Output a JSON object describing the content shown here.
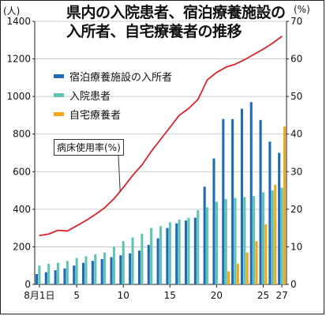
{
  "title": {
    "line1": "県内の入院患者、宿泊療養施設の",
    "line2": "入所者、自宅療養者の推移"
  },
  "units": {
    "left": "(人)",
    "right": "(%)"
  },
  "callout": "病床使用率(%)",
  "colors": {
    "hotel": "#1f6cb4",
    "hospital": "#5fc4b4",
    "home": "#f2a81d",
    "rate": "#d8232a"
  },
  "chart_data": {
    "type": "bar",
    "x_tick_labels": [
      "8月1日",
      "5",
      "10",
      "15",
      "20",
      "25",
      "27"
    ],
    "x_tick_days": [
      1,
      5,
      10,
      15,
      20,
      25,
      27
    ],
    "days": [
      1,
      2,
      3,
      4,
      5,
      6,
      7,
      8,
      9,
      10,
      11,
      12,
      13,
      14,
      15,
      16,
      17,
      18,
      19,
      20,
      21,
      22,
      23,
      24,
      25,
      26,
      27
    ],
    "ylim_left": [
      0,
      1400
    ],
    "yticks_left": [
      0,
      200,
      400,
      600,
      800,
      1000,
      1200,
      1400
    ],
    "ylim_right": [
      0,
      70
    ],
    "yticks_right": [
      0,
      10,
      20,
      30,
      40,
      50,
      60,
      70
    ],
    "series": [
      {
        "name": "宿泊療養施設の入所者",
        "axis": "left",
        "kind": "bar",
        "color_key": "hotel",
        "values": [
          55,
          65,
          75,
          85,
          100,
          115,
          125,
          135,
          145,
          155,
          165,
          180,
          210,
          245,
          300,
          325,
          340,
          355,
          520,
          670,
          880,
          880,
          935,
          970,
          875,
          760,
          700
        ]
      },
      {
        "name": "入院患者",
        "axis": "left",
        "kind": "bar",
        "color_key": "hospital",
        "values": [
          100,
          110,
          115,
          125,
          140,
          150,
          160,
          170,
          200,
          230,
          250,
          270,
          300,
          310,
          330,
          345,
          355,
          395,
          410,
          440,
          455,
          460,
          465,
          470,
          490,
          500,
          515
        ]
      },
      {
        "name": "自宅療養者",
        "axis": "left",
        "kind": "bar",
        "color_key": "home",
        "values": [
          0,
          0,
          0,
          0,
          0,
          0,
          0,
          0,
          0,
          0,
          0,
          0,
          0,
          0,
          0,
          0,
          0,
          0,
          0,
          0,
          70,
          110,
          170,
          230,
          320,
          530,
          840
        ]
      },
      {
        "name": "病床使用率(%)",
        "axis": "right",
        "kind": "line",
        "color_key": "rate",
        "values": [
          13,
          13.4,
          14.4,
          14.2,
          15.6,
          17,
          18.6,
          20.4,
          22.8,
          25.8,
          29,
          31.8,
          35.4,
          38.6,
          41.8,
          45,
          46.8,
          49.2,
          54.4,
          56.4,
          57.8,
          58.6,
          59.8,
          61.2,
          62.6,
          64.2,
          66
        ]
      }
    ]
  }
}
